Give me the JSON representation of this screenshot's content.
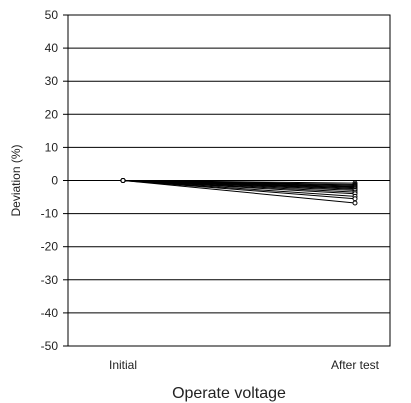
{
  "chart_data": {
    "type": "line",
    "title": "",
    "xlabel": "Operate voltage",
    "ylabel": "Deviation (%)",
    "categories": [
      "Initial",
      "After test"
    ],
    "ylim": [
      -50,
      50
    ],
    "yticks": [
      50,
      40,
      30,
      20,
      10,
      0,
      -10,
      -20,
      -30,
      -40,
      -50
    ],
    "grid": true,
    "legend": "none",
    "marker": "open-circle",
    "series": [
      {
        "values": [
          0,
          -0.8
        ]
      },
      {
        "values": [
          0,
          -1.2
        ]
      },
      {
        "values": [
          0,
          -1.5
        ]
      },
      {
        "values": [
          0,
          -1.8
        ]
      },
      {
        "values": [
          0,
          -2.0
        ]
      },
      {
        "values": [
          0,
          -2.3
        ]
      },
      {
        "values": [
          0,
          -2.6
        ]
      },
      {
        "values": [
          0,
          -3.0
        ]
      },
      {
        "values": [
          0,
          -3.5
        ]
      },
      {
        "values": [
          0,
          -4.0
        ]
      },
      {
        "values": [
          0,
          -4.8
        ]
      },
      {
        "values": [
          0,
          -5.5
        ]
      },
      {
        "values": [
          0,
          -6.8
        ]
      }
    ]
  }
}
